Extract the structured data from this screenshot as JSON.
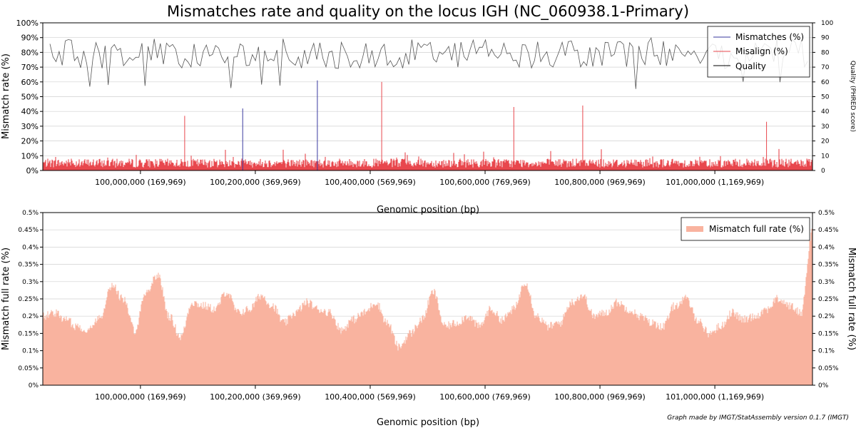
{
  "title": "Mismatches rate and quality on the locus IGH (NC_060938.1-Primary)",
  "credit": "Graph made by IMGT/StatAssembly version 0.1.7 (IMGT)",
  "chart_data": [
    {
      "type": "bar",
      "ylabel": "Mismatch rate (%)",
      "y2label": "Quality (PHRED score)",
      "xlabel": "Genomic position (bp)",
      "ylim": [
        0,
        100
      ],
      "y2lim": [
        0,
        100
      ],
      "xlim": [
        99830000,
        101170000
      ],
      "yticks": [
        "0%",
        "10%",
        "20%",
        "30%",
        "40%",
        "50%",
        "60%",
        "70%",
        "80%",
        "90%",
        "100%"
      ],
      "y2ticks": [
        "0",
        "10",
        "20",
        "30",
        "40",
        "50",
        "60",
        "70",
        "80",
        "90",
        "100"
      ],
      "xticks": [
        {
          "pos": 100000000,
          "label": "100,000,000 (169,969)"
        },
        {
          "pos": 100200000,
          "label": "100,200,000 (369,969)"
        },
        {
          "pos": 100400000,
          "label": "100,400,000 (569,969)"
        },
        {
          "pos": 100600000,
          "label": "100,600,000 (769,969)"
        },
        {
          "pos": 100800000,
          "label": "100,800,000 (969,969)"
        },
        {
          "pos": 101000000,
          "label": "101,000,000 (1,169,969)"
        }
      ],
      "grid": true,
      "legend": "top-right",
      "series": [
        {
          "name": "Mismatches (%)",
          "color": "#3a3aa0",
          "peaks": [
            {
              "x": 100178000,
              "y": 42
            },
            {
              "x": 100308000,
              "y": 61
            }
          ]
        },
        {
          "name": "Misalign (%)",
          "color": "#e8474d",
          "typical_range": [
            2,
            8
          ],
          "peaks": [
            {
              "x": 100077000,
              "y": 37
            },
            {
              "x": 100420000,
              "y": 60
            },
            {
              "x": 100650000,
              "y": 43
            },
            {
              "x": 100770000,
              "y": 44
            },
            {
              "x": 101090000,
              "y": 33
            }
          ]
        },
        {
          "name": "Quality",
          "color": "#555555",
          "axis": "right",
          "typical_range": [
            55,
            90
          ],
          "mean": 78
        }
      ]
    },
    {
      "type": "area",
      "ylabel": "Mismatch full rate (%)",
      "y2label": "Mismatch full rate (%)",
      "xlabel": "Genomic position (bp)",
      "ylim": [
        0,
        0.5
      ],
      "xlim": [
        99830000,
        101170000
      ],
      "yticks": [
        "0%",
        "0.05%",
        "0.1%",
        "0.15%",
        "0.2%",
        "0.25%",
        "0.3%",
        "0.35%",
        "0.4%",
        "0.45%",
        "0.5%"
      ],
      "xticks": [
        {
          "pos": 100000000,
          "label": "100,000,000 (169,969)"
        },
        {
          "pos": 100200000,
          "label": "100,200,000 (369,969)"
        },
        {
          "pos": 100400000,
          "label": "100,400,000 (569,969)"
        },
        {
          "pos": 100600000,
          "label": "100,600,000 (769,969)"
        },
        {
          "pos": 100800000,
          "label": "100,800,000 (969,969)"
        },
        {
          "pos": 101000000,
          "label": "101,000,000 (1,169,969)"
        }
      ],
      "grid": true,
      "legend": "top-right",
      "series": [
        {
          "name": "Mismatch full rate (%)",
          "color": "#f9b39f",
          "x": [
            99830000,
            99850000,
            99870000,
            99890000,
            99910000,
            99930000,
            99950000,
            99970000,
            99990000,
            100010000,
            100030000,
            100050000,
            100070000,
            100090000,
            100110000,
            100130000,
            100150000,
            100170000,
            100190000,
            100210000,
            100230000,
            100250000,
            100270000,
            100290000,
            100310000,
            100330000,
            100350000,
            100370000,
            100390000,
            100410000,
            100430000,
            100450000,
            100470000,
            100490000,
            100510000,
            100530000,
            100550000,
            100570000,
            100590000,
            100610000,
            100630000,
            100650000,
            100670000,
            100690000,
            100710000,
            100730000,
            100750000,
            100770000,
            100790000,
            100810000,
            100830000,
            100850000,
            100870000,
            100890000,
            100910000,
            100930000,
            100950000,
            100970000,
            100990000,
            101010000,
            101030000,
            101050000,
            101070000,
            101090000,
            101110000,
            101130000,
            101150000,
            101170000
          ],
          "values": [
            0.2,
            0.21,
            0.19,
            0.17,
            0.16,
            0.2,
            0.29,
            0.25,
            0.16,
            0.27,
            0.32,
            0.2,
            0.14,
            0.24,
            0.23,
            0.22,
            0.27,
            0.21,
            0.22,
            0.26,
            0.23,
            0.18,
            0.21,
            0.24,
            0.22,
            0.21,
            0.16,
            0.19,
            0.21,
            0.24,
            0.18,
            0.11,
            0.15,
            0.19,
            0.27,
            0.17,
            0.18,
            0.2,
            0.17,
            0.22,
            0.19,
            0.22,
            0.3,
            0.2,
            0.17,
            0.18,
            0.24,
            0.26,
            0.2,
            0.21,
            0.24,
            0.22,
            0.2,
            0.18,
            0.17,
            0.23,
            0.25,
            0.19,
            0.15,
            0.17,
            0.21,
            0.19,
            0.2,
            0.22,
            0.25,
            0.23,
            0.21,
            0.45
          ]
        }
      ]
    }
  ]
}
